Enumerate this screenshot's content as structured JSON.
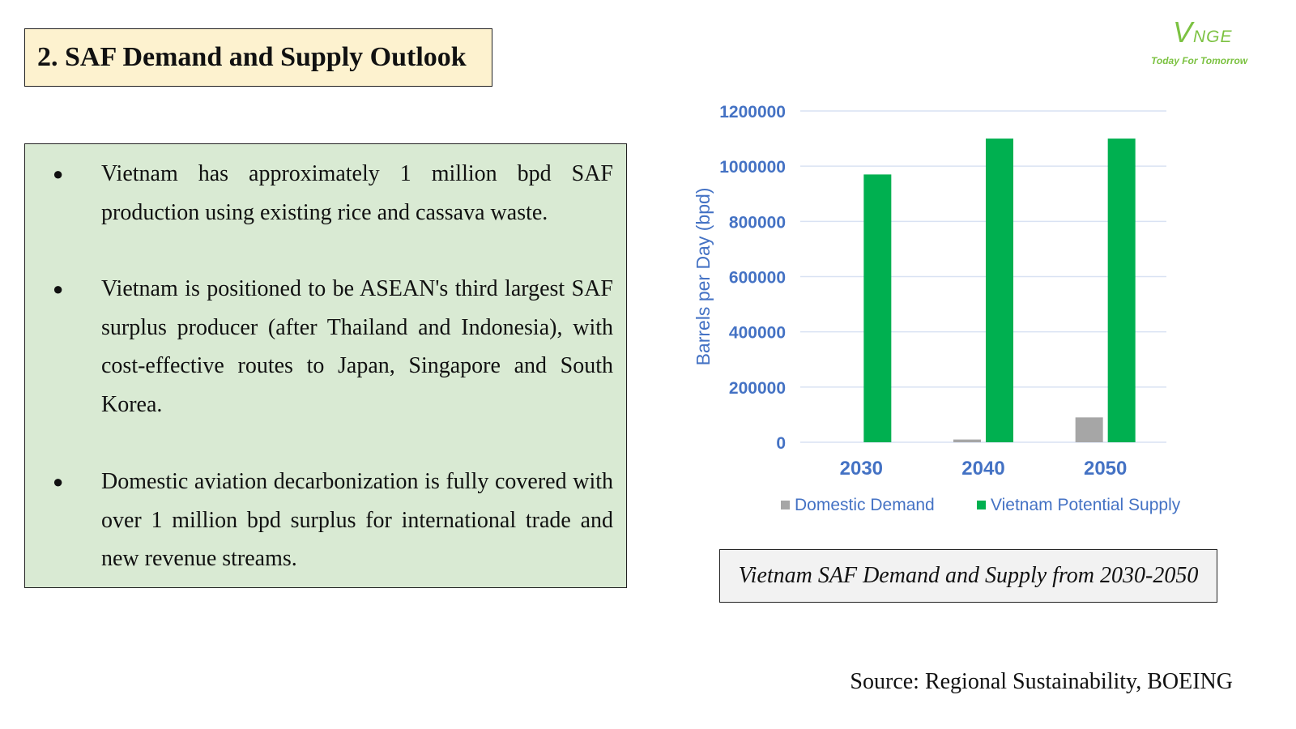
{
  "title": "2. SAF Demand and Supply Outlook",
  "logo": {
    "name_big": "V",
    "name_rest": "NGE",
    "tagline": "Today For Tomorrow"
  },
  "bullets": [
    {
      "text": "Vietnam has approximately 1 million bpd SAF production using existing rice and cassava waste."
    },
    {
      "text": "Vietnam is positioned to be ASEAN's third largest SAF surplus producer (after Thailand and Indonesia), with cost-effective routes to Japan, Singapore and South Korea."
    },
    {
      "text": "Domestic aviation decarbonization is fully covered with over 1 million bpd surplus for international trade and new revenue streams."
    }
  ],
  "bullet_glyph": "●",
  "chart_data": {
    "type": "bar",
    "title": "Vietnam SAF Demand and Supply from 2030-2050",
    "categories": [
      "2030",
      "2040",
      "2050"
    ],
    "series": [
      {
        "name": "Domestic Demand",
        "color": "#a6a6a6",
        "values": [
          0,
          10000,
          90000
        ]
      },
      {
        "name": "Vietnam Potential Supply",
        "color": "#00b050",
        "values": [
          970000,
          1100000,
          1100000
        ]
      }
    ],
    "xlabel": "",
    "ylabel": "Barrels per Day (bpd)",
    "ylim": [
      0,
      1200000
    ],
    "yticks": [
      "0",
      "200000",
      "400000",
      "600000",
      "800000",
      "1000000",
      "1200000"
    ],
    "grid": true,
    "legend_position": "bottom",
    "axis_text_color": "#4472c4",
    "gridline_color": "#d9e2f3"
  },
  "caption": "Vietnam SAF Demand and Supply from 2030-2050",
  "source": "Source: Regional Sustainability, BOEING"
}
